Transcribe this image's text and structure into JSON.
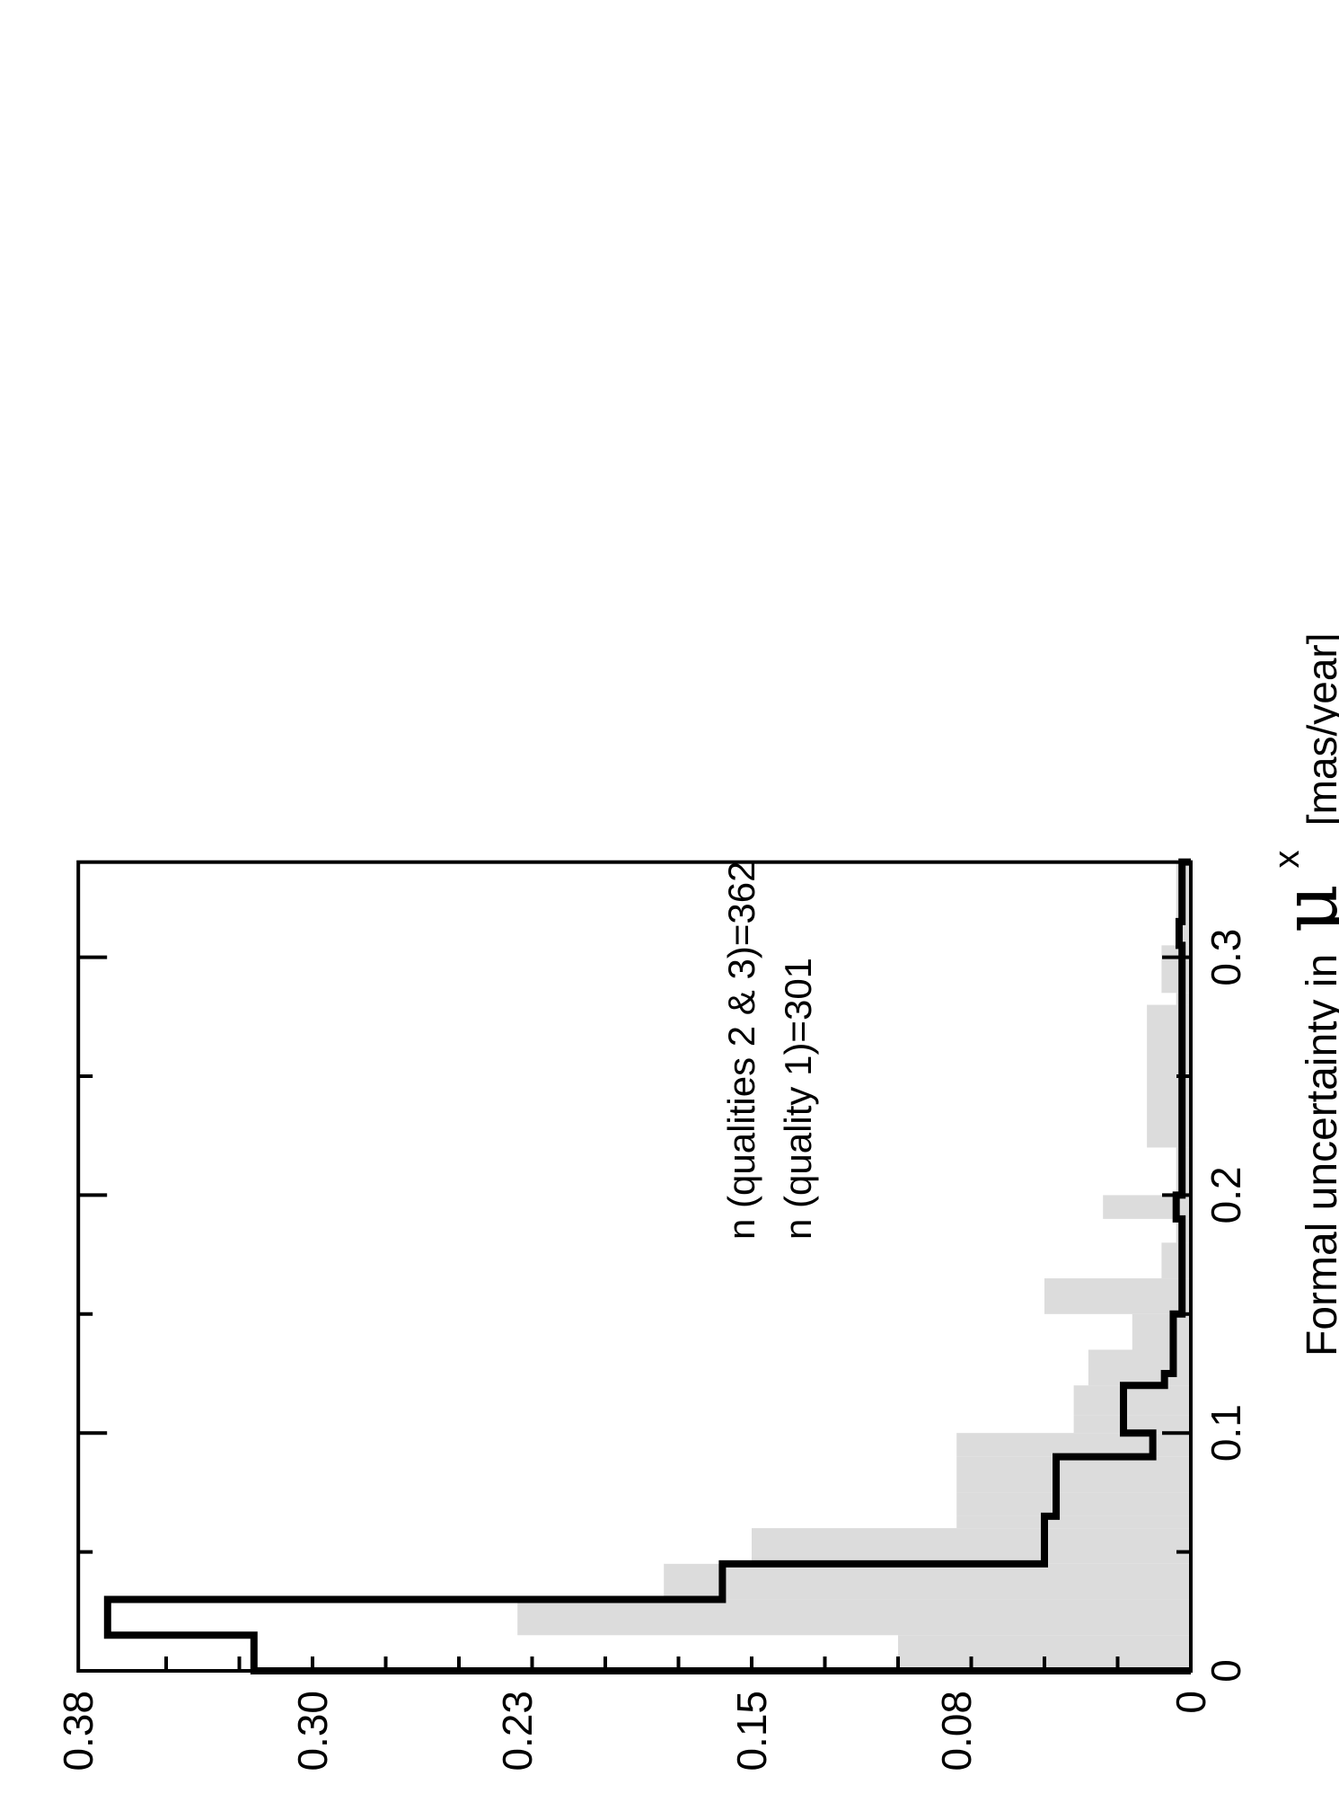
{
  "chart_data": {
    "type": "histogram",
    "orientation": "rotated-90",
    "xlabel": "Formal uncertainty in",
    "xlabel_symbol": "μ",
    "xlabel_superscript": "x",
    "xlabel_unit": "[mas/year]",
    "ylabel": "",
    "xlim": [
      0,
      0.34
    ],
    "ylim": [
      0,
      0.38
    ],
    "x_ticks": [
      0,
      0.1,
      0.2,
      0.3
    ],
    "x_tick_labels": [
      "0",
      "0.1",
      "0.2",
      "0.3"
    ],
    "x_minor_ticks": [
      0.05,
      0.15,
      0.25
    ],
    "y_ticks": [
      0,
      0.08,
      0.15,
      0.23,
      0.3,
      0.38
    ],
    "y_tick_labels": [
      "0",
      "0.08",
      "0.15",
      "0.23",
      "0.30",
      "0.38"
    ],
    "y_minor_ticks": [
      0.025,
      0.05,
      0.075,
      0.1,
      0.125,
      0.15,
      0.175,
      0.2,
      0.225,
      0.25,
      0.275,
      0.3,
      0.325,
      0.35
    ],
    "bin_edges": [
      0,
      0.015,
      0.03,
      0.045,
      0.06,
      0.065,
      0.075,
      0.09,
      0.1,
      0.1075,
      0.12,
      0.125,
      0.135,
      0.15,
      0.165,
      0.18,
      0.19,
      0.2,
      0.21,
      0.22,
      0.28,
      0.285,
      0.305,
      0.315,
      0.34
    ],
    "series": [
      {
        "name": "n (qualities 2 & 3)=362",
        "style": "filled",
        "color": "#dcdcdc",
        "values": [
          0.1,
          0.23,
          0.18,
          0.15,
          0.08,
          0.08,
          0.08,
          0.08,
          0.04,
          0.04,
          0.035,
          0.035,
          0.02,
          0.05,
          0.01,
          0.005,
          0.03,
          0.005,
          0.005,
          0.015,
          0.005,
          0.01,
          0.005,
          0.005
        ]
      },
      {
        "name": "n (quality 1)=301",
        "style": "step-outline",
        "color": "#000000",
        "values": [
          0.32,
          0.37,
          0.16,
          0.05,
          0.05,
          0.046,
          0.046,
          0.013,
          0.023,
          0.023,
          0.009,
          0.006,
          0.006,
          0.003,
          0.003,
          0.003,
          0.005,
          0.003,
          0.003,
          0.003,
          0.003,
          0.003,
          0.004,
          0.003
        ]
      }
    ],
    "legend_entries": [
      "n (qualities 2 & 3)=362",
      "n (quality 1)=301"
    ],
    "grid": false,
    "legend_position": "top-right (rotated)"
  }
}
